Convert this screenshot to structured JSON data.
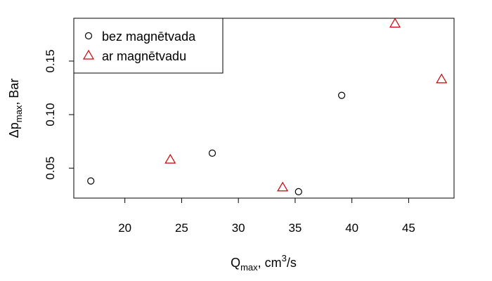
{
  "chart_data": {
    "type": "scatter",
    "xlabel": {
      "base": "Q",
      "sub": "max",
      "mid": ", cm",
      "sup": "3",
      "tail": "/s"
    },
    "ylabel": {
      "pre": "Δp",
      "sub": "max",
      "post": ", Bar"
    },
    "xlim": [
      15.5,
      49
    ],
    "ylim": [
      0.022,
      0.19
    ],
    "xticks": [
      20,
      25,
      30,
      35,
      40,
      45
    ],
    "yticks": [
      0.05,
      0.1,
      0.15
    ],
    "xtick_labels": [
      "20",
      "25",
      "30",
      "35",
      "40",
      "45"
    ],
    "ytick_labels": [
      "0.05",
      "0.10",
      "0.15"
    ],
    "grid": false,
    "legend_position": "top-left",
    "series": [
      {
        "name": "bez magnētvada",
        "marker": "circle",
        "color": "#000000",
        "x": [
          17.0,
          27.7,
          35.3,
          39.1
        ],
        "y": [
          0.038,
          0.064,
          0.028,
          0.118
        ]
      },
      {
        "name": "ar magnētvadu",
        "marker": "triangle",
        "color": "#cc0000",
        "x": [
          24.0,
          33.9,
          43.8,
          47.9
        ],
        "y": [
          0.058,
          0.032,
          0.185,
          0.133
        ]
      }
    ]
  }
}
